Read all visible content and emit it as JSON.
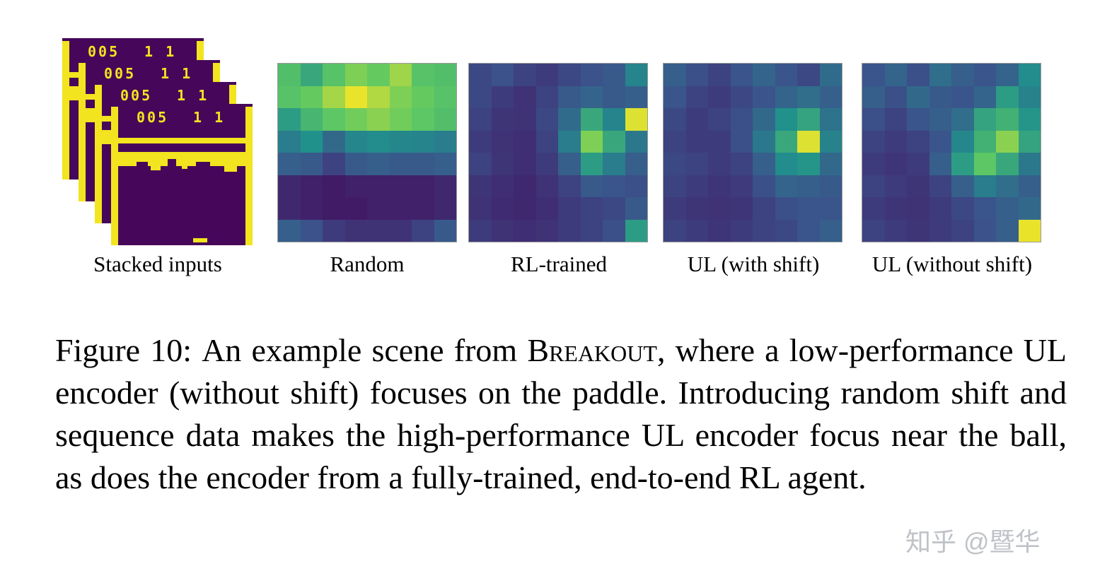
{
  "figure": {
    "stacked_inputs": {
      "label": "Stacked inputs",
      "score": "005",
      "lives": "1 1",
      "num_frames": 4
    },
    "heatmap_labels": [
      "Random",
      "RL-trained",
      "UL (with shift)",
      "UL (without shift)"
    ],
    "caption": {
      "tag": "Figure 10:",
      "part1": "An example scene from ",
      "game": "Breakout",
      "part2": ", where a low-performance UL encoder (without shift) focuses on the paddle. Introducing random shift and sequence data makes the high-performance UL encoder focus near the ball, as does the encoder from a fully-trained, end-to-end RL agent."
    }
  },
  "watermark": "知乎 @暨华",
  "colors": {
    "viridis_stops": [
      "#440154",
      "#3b528b",
      "#21918c",
      "#5ec962",
      "#fde725"
    ],
    "atari_purple": "#46075a",
    "atari_yellow": "#f2e41f",
    "watermark_gray": "#bfc2c7"
  },
  "chart_data": [
    {
      "type": "heatmap",
      "title": "Random",
      "colormap": "viridis",
      "rows": 8,
      "cols": 8,
      "value_range": [
        0,
        1
      ],
      "values": [
        [
          0.7,
          0.6,
          0.72,
          0.8,
          0.76,
          0.85,
          0.72,
          0.7
        ],
        [
          0.72,
          0.76,
          0.86,
          0.97,
          0.88,
          0.8,
          0.76,
          0.72
        ],
        [
          0.55,
          0.66,
          0.74,
          0.78,
          0.82,
          0.78,
          0.74,
          0.7
        ],
        [
          0.42,
          0.5,
          0.34,
          0.46,
          0.48,
          0.46,
          0.45,
          0.42
        ],
        [
          0.3,
          0.28,
          0.2,
          0.28,
          0.3,
          0.28,
          0.28,
          0.3
        ],
        [
          0.12,
          0.1,
          0.08,
          0.1,
          0.1,
          0.1,
          0.1,
          0.12
        ],
        [
          0.12,
          0.1,
          0.08,
          0.08,
          0.1,
          0.1,
          0.1,
          0.12
        ],
        [
          0.3,
          0.25,
          0.18,
          0.15,
          0.15,
          0.15,
          0.2,
          0.28
        ]
      ]
    },
    {
      "type": "heatmap",
      "title": "RL-trained",
      "colormap": "viridis",
      "rows": 8,
      "cols": 8,
      "value_range": [
        0,
        1
      ],
      "values": [
        [
          0.22,
          0.25,
          0.2,
          0.18,
          0.22,
          0.25,
          0.28,
          0.45
        ],
        [
          0.22,
          0.18,
          0.15,
          0.2,
          0.28,
          0.32,
          0.28,
          0.3
        ],
        [
          0.2,
          0.16,
          0.15,
          0.22,
          0.35,
          0.6,
          0.45,
          0.95
        ],
        [
          0.18,
          0.15,
          0.14,
          0.2,
          0.42,
          0.8,
          0.6,
          0.4
        ],
        [
          0.2,
          0.16,
          0.14,
          0.18,
          0.3,
          0.55,
          0.42,
          0.3
        ],
        [
          0.16,
          0.14,
          0.12,
          0.15,
          0.2,
          0.28,
          0.26,
          0.24
        ],
        [
          0.15,
          0.13,
          0.12,
          0.14,
          0.18,
          0.2,
          0.22,
          0.28
        ],
        [
          0.18,
          0.15,
          0.14,
          0.15,
          0.18,
          0.2,
          0.24,
          0.55
        ]
      ]
    },
    {
      "type": "heatmap",
      "title": "UL (with shift)",
      "colormap": "viridis",
      "rows": 8,
      "cols": 8,
      "value_range": [
        0,
        1
      ],
      "values": [
        [
          0.3,
          0.24,
          0.2,
          0.26,
          0.32,
          0.26,
          0.22,
          0.35
        ],
        [
          0.26,
          0.2,
          0.18,
          0.22,
          0.26,
          0.32,
          0.36,
          0.3
        ],
        [
          0.22,
          0.18,
          0.2,
          0.24,
          0.34,
          0.5,
          0.58,
          0.38
        ],
        [
          0.2,
          0.18,
          0.18,
          0.24,
          0.4,
          0.6,
          0.95,
          0.44
        ],
        [
          0.22,
          0.2,
          0.18,
          0.2,
          0.3,
          0.48,
          0.52,
          0.34
        ],
        [
          0.2,
          0.18,
          0.16,
          0.18,
          0.24,
          0.32,
          0.3,
          0.28
        ],
        [
          0.18,
          0.16,
          0.15,
          0.16,
          0.2,
          0.24,
          0.26,
          0.26
        ],
        [
          0.2,
          0.18,
          0.16,
          0.18,
          0.2,
          0.22,
          0.26,
          0.3
        ]
      ]
    },
    {
      "type": "heatmap",
      "title": "UL (without shift)",
      "colormap": "viridis",
      "rows": 8,
      "cols": 8,
      "value_range": [
        0,
        1
      ],
      "values": [
        [
          0.26,
          0.32,
          0.24,
          0.36,
          0.3,
          0.26,
          0.32,
          0.48
        ],
        [
          0.3,
          0.24,
          0.34,
          0.28,
          0.26,
          0.32,
          0.55,
          0.44
        ],
        [
          0.24,
          0.2,
          0.26,
          0.3,
          0.36,
          0.58,
          0.64,
          0.52
        ],
        [
          0.2,
          0.18,
          0.2,
          0.26,
          0.46,
          0.64,
          0.82,
          0.58
        ],
        [
          0.18,
          0.16,
          0.18,
          0.3,
          0.55,
          0.74,
          0.6,
          0.4
        ],
        [
          0.2,
          0.18,
          0.16,
          0.2,
          0.3,
          0.42,
          0.36,
          0.3
        ],
        [
          0.18,
          0.16,
          0.15,
          0.18,
          0.22,
          0.26,
          0.3,
          0.34
        ],
        [
          0.2,
          0.18,
          0.16,
          0.18,
          0.2,
          0.25,
          0.3,
          0.97
        ]
      ]
    }
  ]
}
